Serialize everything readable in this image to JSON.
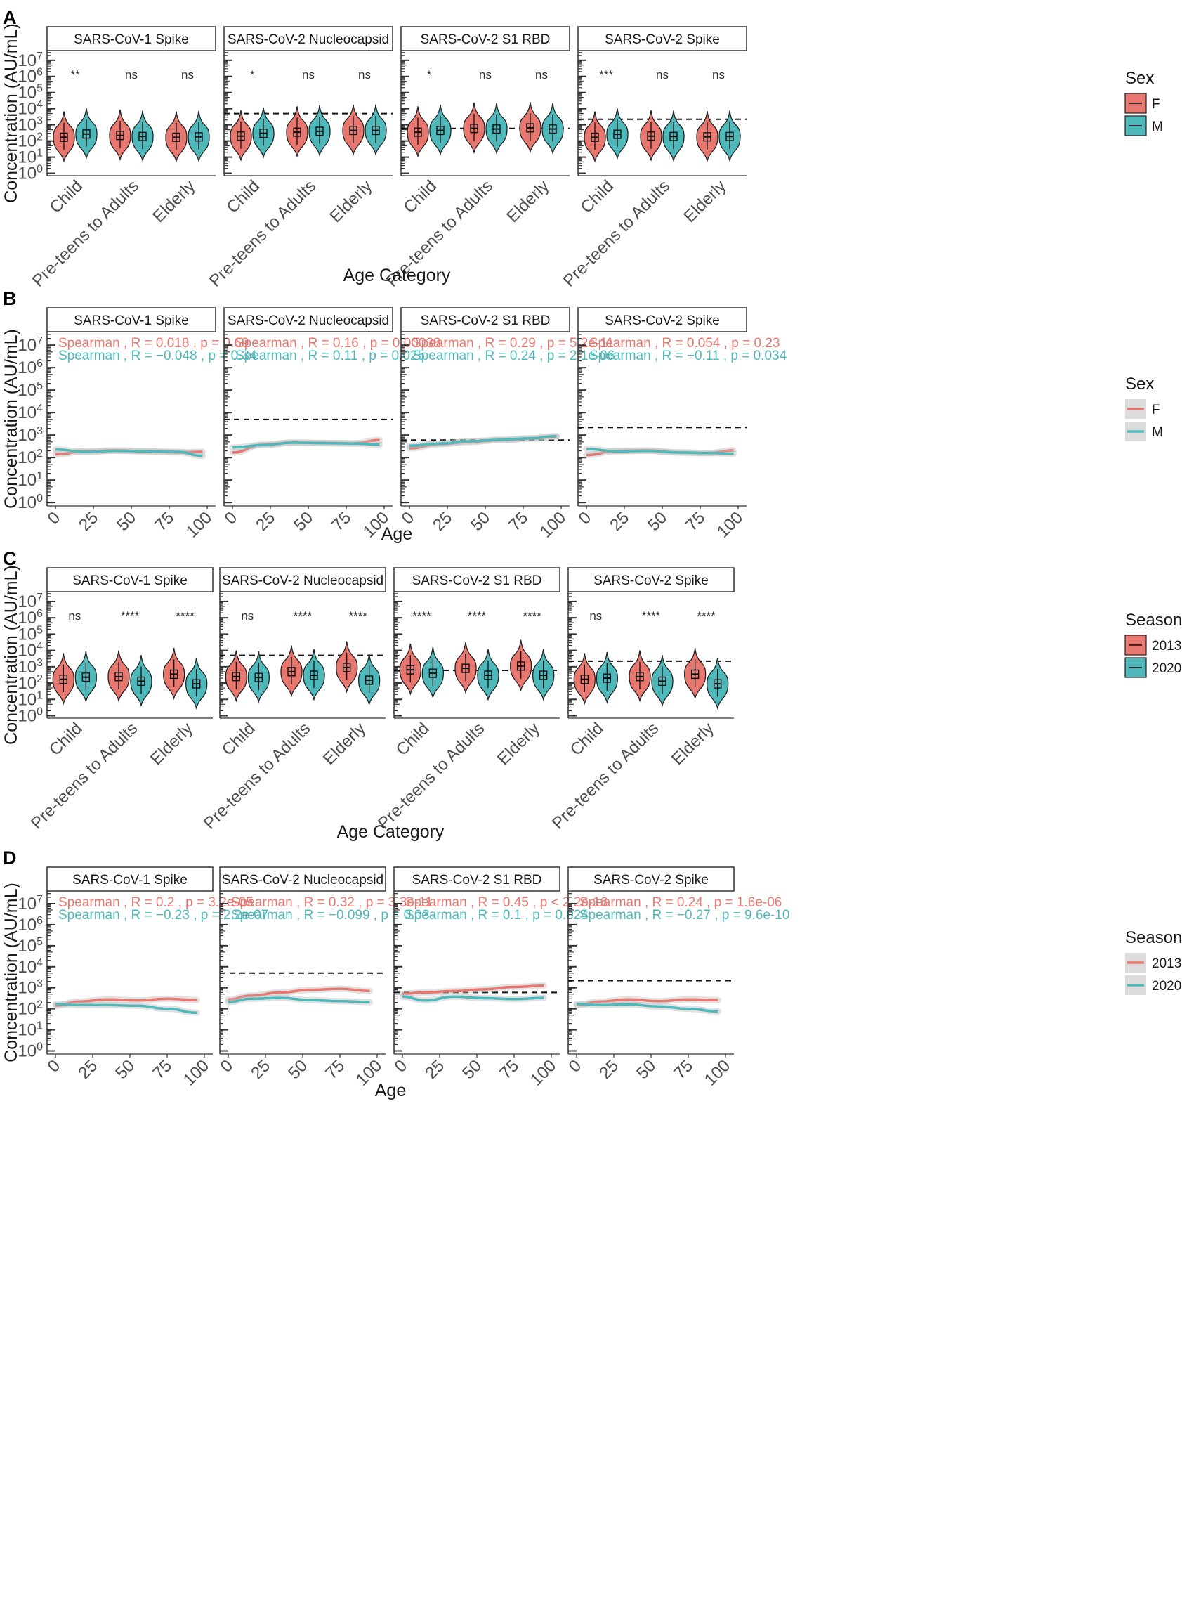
{
  "colors": {
    "red": "#e7776f",
    "teal": "#4fb8bb",
    "dark": "#222222"
  },
  "ylabel": "Concentration (AU/mL)",
  "ytick_labels": [
    "10^0",
    "10^1",
    "10^2",
    "10^3",
    "10^4",
    "10^5",
    "10^6",
    "10^7"
  ],
  "panels": [
    {
      "id": "A",
      "type": "violin",
      "xlabel": "Age Category",
      "categories": [
        "Child",
        "Pre-teens to Adults",
        "Elderly"
      ],
      "legend": {
        "title": "Sex",
        "items": [
          "F",
          "M"
        ]
      },
      "facets": [
        {
          "title": "SARS-CoV-1 Spike",
          "threshold": null,
          "sig": [
            "**",
            "ns",
            "ns"
          ],
          "medians": [
            [
              170,
              270
            ],
            [
              220,
              190
            ],
            [
              170,
              180
            ]
          ]
        },
        {
          "title": "SARS-CoV-2 Nucleocapsid",
          "threshold": 5000,
          "sig": [
            "*",
            "ns",
            "ns"
          ],
          "medians": [
            [
              200,
              300
            ],
            [
              350,
              400
            ],
            [
              450,
              450
            ]
          ]
        },
        {
          "title": "SARS-CoV-2 S1 RBD",
          "threshold": 600,
          "sig": [
            "*",
            "ns",
            "ns"
          ],
          "medians": [
            [
              350,
              450
            ],
            [
              600,
              550
            ],
            [
              650,
              550
            ]
          ]
        },
        {
          "title": "SARS-CoV-2 Spike",
          "threshold": 2200,
          "sig": [
            "***",
            "ns",
            "ns"
          ],
          "medians": [
            [
              170,
              260
            ],
            [
              200,
              190
            ],
            [
              180,
              190
            ]
          ]
        }
      ]
    },
    {
      "id": "B",
      "type": "line",
      "xlabel": "Age",
      "x_ticks": [
        "0",
        "25",
        "50",
        "75",
        "100"
      ],
      "legend": {
        "title": "Sex",
        "items": [
          "F",
          "M"
        ]
      },
      "facets": [
        {
          "title": "SARS-CoV-1 Spike",
          "threshold": null,
          "stats": [
            "Spearman , R = 0.018 , p = 0.69",
            "Spearman , R = −0.048 , p = 0.34"
          ],
          "series": [
            {
              "name": "F",
              "x": [
                0,
                20,
                40,
                60,
                80,
                97
              ],
              "y": [
                140,
                190,
                210,
                190,
                170,
                180
              ]
            },
            {
              "name": "M",
              "x": [
                0,
                20,
                40,
                60,
                80,
                97
              ],
              "y": [
                230,
                180,
                200,
                190,
                180,
                120
              ]
            }
          ]
        },
        {
          "title": "SARS-CoV-2 Nucleocapsid",
          "threshold": 5000,
          "stats": [
            "Spearman , R = 0.16 , p = 0.00038",
            "Spearman , R = 0.11 , p = 0.025"
          ],
          "series": [
            {
              "name": "F",
              "x": [
                0,
                20,
                40,
                60,
                80,
                97
              ],
              "y": [
                170,
                370,
                470,
                450,
                430,
                600
              ]
            },
            {
              "name": "M",
              "x": [
                0,
                20,
                40,
                60,
                80,
                97
              ],
              "y": [
                280,
                360,
                460,
                440,
                420,
                380
              ]
            }
          ]
        },
        {
          "title": "SARS-CoV-2 S1 RBD",
          "threshold": 600,
          "stats": [
            "Spearman , R = 0.29 , p = 5.2e-11",
            "Spearman , R = 0.24 , p = 2.1e-06"
          ],
          "series": [
            {
              "name": "F",
              "x": [
                0,
                20,
                40,
                60,
                80,
                97
              ],
              "y": [
                260,
                400,
                500,
                600,
                700,
                850
              ]
            },
            {
              "name": "M",
              "x": [
                0,
                20,
                40,
                60,
                80,
                97
              ],
              "y": [
                340,
                420,
                530,
                620,
                720,
                900
              ]
            }
          ]
        },
        {
          "title": "SARS-CoV-2 Spike",
          "threshold": 2200,
          "stats": [
            "Spearman , R = 0.054 , p = 0.23",
            "Spearman , R = −0.11 , p = 0.034"
          ],
          "series": [
            {
              "name": "F",
              "x": [
                0,
                20,
                40,
                60,
                80,
                97
              ],
              "y": [
                130,
                200,
                210,
                170,
                160,
                210
              ]
            },
            {
              "name": "M",
              "x": [
                0,
                20,
                40,
                60,
                80,
                97
              ],
              "y": [
                240,
                190,
                200,
                170,
                160,
                150
              ]
            }
          ]
        }
      ]
    },
    {
      "id": "C",
      "type": "violin",
      "xlabel": "Age Category",
      "categories": [
        "Child",
        "Pre-teens to Adults",
        "Elderly"
      ],
      "legend": {
        "title": "Season",
        "items": [
          "2013",
          "2020"
        ]
      },
      "facets": [
        {
          "title": "SARS-CoV-1 Spike",
          "threshold": null,
          "sig": [
            "ns",
            "****",
            "****"
          ],
          "medians": [
            [
              170,
              230
            ],
            [
              250,
              130
            ],
            [
              350,
              90
            ]
          ]
        },
        {
          "title": "SARS-CoV-2 Nucleocapsid",
          "threshold": 5000,
          "sig": [
            "ns",
            "****",
            "****"
          ],
          "medians": [
            [
              250,
              220
            ],
            [
              500,
              300
            ],
            [
              900,
              150
            ]
          ]
        },
        {
          "title": "SARS-CoV-2 S1 RBD",
          "threshold": 600,
          "sig": [
            "****",
            "****",
            "****"
          ],
          "medians": [
            [
              650,
              400
            ],
            [
              800,
              300
            ],
            [
              1100,
              300
            ]
          ]
        },
        {
          "title": "SARS-CoV-2 Spike",
          "threshold": 2200,
          "sig": [
            "ns",
            "****",
            "****"
          ],
          "medians": [
            [
              170,
              200
            ],
            [
              250,
              130
            ],
            [
              350,
              90
            ]
          ]
        }
      ]
    },
    {
      "id": "D",
      "type": "line",
      "xlabel": "Age",
      "x_ticks": [
        "0",
        "25",
        "50",
        "75",
        "100"
      ],
      "legend": {
        "title": "Season",
        "items": [
          "2013",
          "2020"
        ]
      },
      "facets": [
        {
          "title": "SARS-CoV-1 Spike",
          "threshold": null,
          "stats": [
            "Spearman , R = 0.2 , p = 3.2e-05",
            "Spearman , R = −0.23 , p = 2.2e-07"
          ],
          "series": [
            {
              "name": "2013",
              "x": [
                0,
                15,
                35,
                55,
                75,
                95
              ],
              "y": [
                140,
                220,
                280,
                250,
                300,
                260
              ]
            },
            {
              "name": "2020",
              "x": [
                0,
                15,
                35,
                55,
                75,
                95
              ],
              "y": [
                170,
                150,
                150,
                140,
                100,
                65
              ]
            }
          ]
        },
        {
          "title": "SARS-CoV-2 Nucleocapsid",
          "threshold": 5000,
          "stats": [
            "Spearman , R = 0.32 , p = 3.3e-11",
            "Spearman , R = −0.099 , p = 0.03"
          ],
          "series": [
            {
              "name": "2013",
              "x": [
                0,
                15,
                35,
                55,
                75,
                95
              ],
              "y": [
                280,
                420,
                600,
                800,
                900,
                700
              ]
            },
            {
              "name": "2020",
              "x": [
                0,
                15,
                35,
                55,
                75,
                95
              ],
              "y": [
                210,
                300,
                330,
                260,
                230,
                210
              ]
            }
          ]
        },
        {
          "title": "SARS-CoV-2 S1 RBD",
          "threshold": 600,
          "stats": [
            "Spearman , R = 0.45 , p < 2.2e-16",
            "Spearman , R = 0.1 , p = 0.024"
          ],
          "series": [
            {
              "name": "2013",
              "x": [
                0,
                15,
                35,
                55,
                75,
                95
              ],
              "y": [
                520,
                600,
                700,
                850,
                1100,
                1250
              ]
            },
            {
              "name": "2020",
              "x": [
                0,
                15,
                35,
                55,
                75,
                95
              ],
              "y": [
                380,
                250,
                380,
                320,
                290,
                330
              ]
            }
          ]
        },
        {
          "title": "SARS-CoV-2 Spike",
          "threshold": 2200,
          "stats": [
            "Spearman , R = 0.24 , p = 1.6e-06",
            "Spearman , R = −0.27 , p = 9.6e-10"
          ],
          "series": [
            {
              "name": "2013",
              "x": [
                0,
                15,
                35,
                55,
                75,
                95
              ],
              "y": [
                150,
                220,
                280,
                230,
                280,
                260
              ]
            },
            {
              "name": "2020",
              "x": [
                0,
                15,
                35,
                55,
                75,
                95
              ],
              "y": [
                170,
                150,
                160,
                130,
                100,
                75
              ]
            }
          ]
        }
      ]
    }
  ],
  "chart_data": [
    {
      "type": "violin",
      "title": "A",
      "xlabel": "Age Category",
      "ylabel": "Concentration (AU/mL)",
      "yscale": "log10",
      "ylim": [
        1,
        10000000
      ],
      "categories": [
        "Child",
        "Pre-teens to Adults",
        "Elderly"
      ],
      "groups": [
        "F",
        "M"
      ],
      "facets": [
        "SARS-CoV-1 Spike",
        "SARS-CoV-2 Nucleocapsid",
        "SARS-CoV-2 S1 RBD",
        "SARS-CoV-2 Spike"
      ]
    },
    {
      "type": "line",
      "title": "B",
      "xlabel": "Age",
      "ylabel": "Concentration (AU/mL)",
      "yscale": "log10",
      "xlim": [
        0,
        100
      ],
      "ylim": [
        1,
        10000000
      ],
      "groups": [
        "F",
        "M"
      ],
      "facets": [
        "SARS-CoV-1 Spike",
        "SARS-CoV-2 Nucleocapsid",
        "SARS-CoV-2 S1 RBD",
        "SARS-CoV-2 Spike"
      ]
    },
    {
      "type": "violin",
      "title": "C",
      "xlabel": "Age Category",
      "ylabel": "Concentration (AU/mL)",
      "yscale": "log10",
      "ylim": [
        1,
        10000000
      ],
      "categories": [
        "Child",
        "Pre-teens to Adults",
        "Elderly"
      ],
      "groups": [
        "2013",
        "2020"
      ],
      "facets": [
        "SARS-CoV-1 Spike",
        "SARS-CoV-2 Nucleocapsid",
        "SARS-CoV-2 S1 RBD",
        "SARS-CoV-2 Spike"
      ]
    },
    {
      "type": "line",
      "title": "D",
      "xlabel": "Age",
      "ylabel": "Concentration (AU/mL)",
      "yscale": "log10",
      "xlim": [
        0,
        100
      ],
      "ylim": [
        1,
        10000000
      ],
      "groups": [
        "2013",
        "2020"
      ],
      "facets": [
        "SARS-CoV-1 Spike",
        "SARS-CoV-2 Nucleocapsid",
        "SARS-CoV-2 S1 RBD",
        "SARS-CoV-2 Spike"
      ]
    }
  ]
}
